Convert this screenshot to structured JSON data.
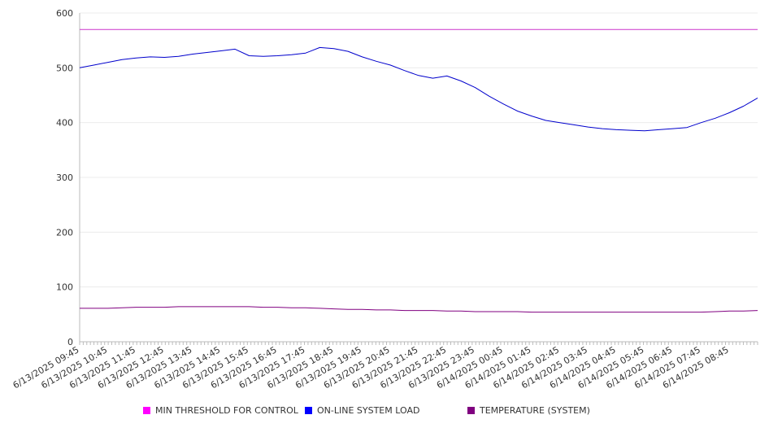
{
  "chart_data": {
    "type": "line",
    "title": "",
    "xlabel": "",
    "ylabel": "",
    "ylim": [
      0,
      600
    ],
    "yticks": [
      0,
      100,
      200,
      300,
      400,
      500,
      600
    ],
    "grid": true,
    "legend_position": "bottom",
    "x_tick_labels": [
      "6/13/2025 09:45",
      "6/13/2025 10:45",
      "6/13/2025 11:45",
      "6/13/2025 12:45",
      "6/13/2025 13:45",
      "6/13/2025 14:45",
      "6/13/2025 15:45",
      "6/13/2025 16:45",
      "6/13/2025 17:45",
      "6/13/2025 18:45",
      "6/13/2025 19:45",
      "6/13/2025 20:45",
      "6/13/2025 21:45",
      "6/13/2025 22:45",
      "6/13/2025 23:45",
      "6/14/2025 00:45",
      "6/14/2025 01:45",
      "6/14/2025 02:45",
      "6/14/2025 03:45",
      "6/14/2025 04:45",
      "6/14/2025 05:45",
      "6/14/2025 06:45",
      "6/14/2025 07:45",
      "6/14/2025 08:45"
    ],
    "x": [
      "6/13/2025 09:45",
      "6/13/2025 10:15",
      "6/13/2025 10:45",
      "6/13/2025 11:15",
      "6/13/2025 11:45",
      "6/13/2025 12:15",
      "6/13/2025 12:45",
      "6/13/2025 13:15",
      "6/13/2025 13:45",
      "6/13/2025 14:15",
      "6/13/2025 14:45",
      "6/13/2025 15:15",
      "6/13/2025 15:45",
      "6/13/2025 16:15",
      "6/13/2025 16:45",
      "6/13/2025 17:15",
      "6/13/2025 17:45",
      "6/13/2025 18:15",
      "6/13/2025 18:45",
      "6/13/2025 19:15",
      "6/13/2025 19:45",
      "6/13/2025 20:15",
      "6/13/2025 20:45",
      "6/13/2025 21:15",
      "6/13/2025 21:45",
      "6/13/2025 22:15",
      "6/13/2025 22:45",
      "6/13/2025 23:15",
      "6/13/2025 23:45",
      "6/14/2025 00:15",
      "6/14/2025 00:45",
      "6/14/2025 01:15",
      "6/14/2025 01:45",
      "6/14/2025 02:15",
      "6/14/2025 02:45",
      "6/14/2025 03:15",
      "6/14/2025 03:45",
      "6/14/2025 04:15",
      "6/14/2025 04:45",
      "6/14/2025 05:15",
      "6/14/2025 05:45",
      "6/14/2025 06:15",
      "6/14/2025 06:45",
      "6/14/2025 07:15",
      "6/14/2025 07:45",
      "6/14/2025 08:15",
      "6/14/2025 08:45",
      "6/14/2025 09:15",
      "6/14/2025 09:40"
    ],
    "series": [
      {
        "name": "MIN THRESHOLD FOR CONTROL",
        "color": "#cc33cc",
        "legend_color": "#ff00ff",
        "values": [
          570,
          570,
          570,
          570,
          570,
          570,
          570,
          570,
          570,
          570,
          570,
          570,
          570,
          570,
          570,
          570,
          570,
          570,
          570,
          570,
          570,
          570,
          570,
          570,
          570,
          570,
          570,
          570,
          570,
          570,
          570,
          570,
          570,
          570,
          570,
          570,
          570,
          570,
          570,
          570,
          570,
          570,
          570,
          570,
          570,
          570,
          570,
          570,
          570
        ]
      },
      {
        "name": "ON-LINE SYSTEM LOAD",
        "color": "#0000cc",
        "legend_color": "#0000ff",
        "values": [
          500,
          505,
          510,
          515,
          518,
          520,
          519,
          521,
          525,
          528,
          531,
          534,
          522,
          521,
          522,
          524,
          527,
          537,
          535,
          530,
          520,
          512,
          505,
          495,
          486,
          481,
          485,
          476,
          464,
          448,
          434,
          421,
          412,
          404,
          400,
          396,
          392,
          389,
          387,
          386,
          385,
          387,
          389,
          391,
          400,
          408,
          418,
          430,
          445
        ]
      },
      {
        "name": "TEMPERATURE (SYSTEM)",
        "color": "#800080",
        "legend_color": "#800080",
        "values": [
          61,
          61,
          61,
          62,
          63,
          63,
          63,
          64,
          64,
          64,
          64,
          64,
          64,
          63,
          63,
          62,
          62,
          61,
          60,
          59,
          59,
          58,
          58,
          57,
          57,
          57,
          56,
          56,
          55,
          55,
          55,
          55,
          54,
          54,
          54,
          54,
          54,
          54,
          54,
          54,
          54,
          54,
          54,
          54,
          54,
          55,
          56,
          56,
          57
        ]
      }
    ]
  }
}
